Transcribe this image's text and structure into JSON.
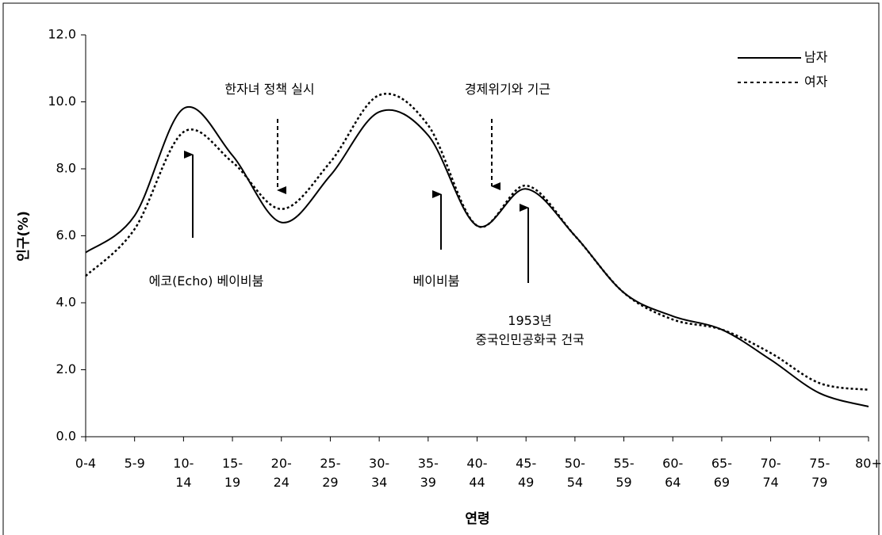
{
  "chart_data": {
    "type": "line",
    "x_label": "연령",
    "y_label": "인구(%)",
    "categories": [
      "0-4",
      "5-9",
      "10-\n14",
      "15-\n19",
      "20-\n24",
      "25-\n29",
      "30-\n34",
      "35-\n39",
      "40-\n44",
      "45-\n49",
      "50-\n54",
      "55-\n59",
      "60-\n64",
      "65-\n69",
      "70-\n74",
      "75-\n79",
      "80+"
    ],
    "series": [
      {
        "name": "남자",
        "color": "#000000",
        "dash": false,
        "values": [
          5.5,
          6.6,
          9.8,
          8.4,
          6.4,
          7.8,
          9.7,
          9.0,
          6.3,
          7.4,
          6.0,
          4.3,
          3.6,
          3.2,
          2.3,
          1.3,
          0.9
        ]
      },
      {
        "name": "여자",
        "color": "#000000",
        "dash": true,
        "values": [
          4.8,
          6.2,
          9.1,
          8.2,
          6.8,
          8.2,
          10.2,
          9.3,
          6.3,
          7.5,
          6.0,
          4.3,
          3.5,
          3.2,
          2.5,
          1.6,
          1.4
        ]
      }
    ],
    "ylim": [
      0,
      12
    ],
    "yticks": [
      {
        "value": 0,
        "label": "0.0"
      },
      {
        "value": 2,
        "label": "2.0"
      },
      {
        "value": 4,
        "label": "4.0"
      },
      {
        "value": 6,
        "label": "6.0"
      },
      {
        "value": 8,
        "label": "8.0"
      },
      {
        "value": 10,
        "label": "10.0"
      },
      {
        "value": 12,
        "label": "12.0"
      }
    ],
    "legend": "top-right",
    "annotations": [
      "한자녀 정책 실시",
      "경제위기와 기근",
      "에코(Echo) 베이비붐",
      "베이비붐",
      "1953년\n중국인민공화국 건국"
    ]
  }
}
